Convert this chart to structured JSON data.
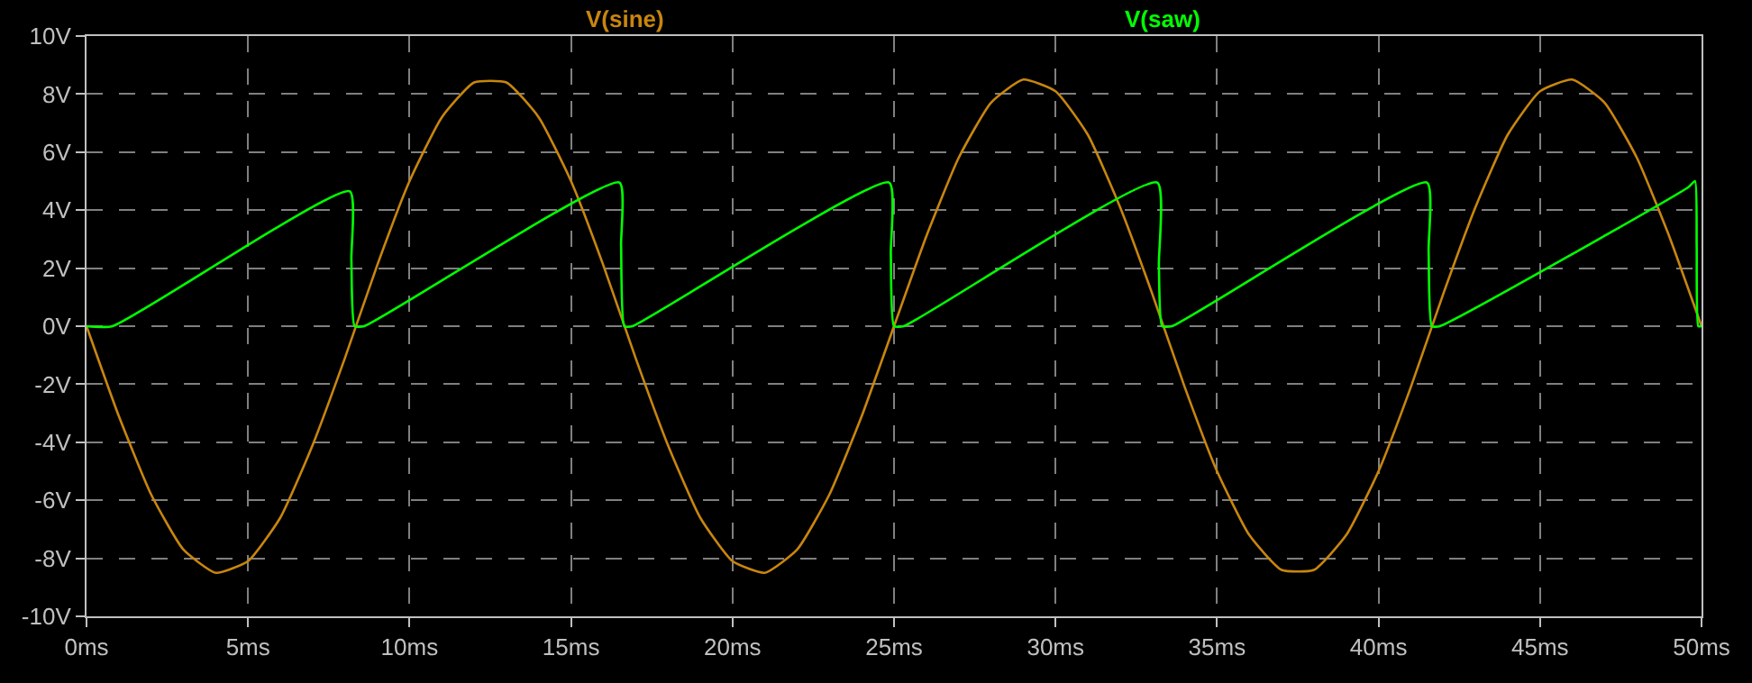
{
  "chart_data": {
    "type": "line",
    "grid": true,
    "legend": false,
    "marker": "none",
    "line_style": "solid",
    "xlim": [
      0,
      50
    ],
    "xticks": [
      {
        "value": 0,
        "label": "0ms"
      },
      {
        "value": 5,
        "label": "5ms"
      },
      {
        "value": 10,
        "label": "10ms"
      },
      {
        "value": 15,
        "label": "15ms"
      },
      {
        "value": 20,
        "label": "20ms"
      },
      {
        "value": 25,
        "label": "25ms"
      },
      {
        "value": 30,
        "label": "30ms"
      },
      {
        "value": 35,
        "label": "35ms"
      },
      {
        "value": 40,
        "label": "40ms"
      },
      {
        "value": 45,
        "label": "45ms"
      },
      {
        "value": 50,
        "label": "50ms"
      }
    ],
    "ylim": [
      -10,
      10
    ],
    "yticks": [
      {
        "value": -10,
        "label": "-10V"
      },
      {
        "value": -8,
        "label": "-8V"
      },
      {
        "value": -6,
        "label": "-6V"
      },
      {
        "value": -4,
        "label": "-4V"
      },
      {
        "value": -2,
        "label": "-2V"
      },
      {
        "value": 0,
        "label": "0V"
      },
      {
        "value": 2,
        "label": "2V"
      },
      {
        "value": 4,
        "label": "4V"
      },
      {
        "value": 6,
        "label": "6V"
      },
      {
        "value": 8,
        "label": "8V"
      },
      {
        "value": 10,
        "label": "10V"
      }
    ],
    "series": [
      {
        "name": "V(sine)",
        "color": "#c8860e",
        "x": [
          0,
          1,
          2,
          3,
          4,
          5,
          6,
          7,
          8,
          9,
          10,
          11,
          12,
          13,
          14,
          15,
          16,
          17,
          18,
          19,
          20,
          21,
          22,
          23,
          24,
          25,
          26,
          27,
          28,
          29,
          30,
          31,
          32,
          33,
          34,
          35,
          36,
          37,
          38,
          39,
          40,
          41,
          42,
          43,
          44,
          45,
          46,
          47,
          48,
          49,
          50
        ],
        "values": [
          0,
          -3.1,
          -5.8,
          -7.7,
          -8.5,
          -8.1,
          -6.6,
          -4.1,
          -1.1,
          2.1,
          5.0,
          7.2,
          8.4,
          8.4,
          7.2,
          5.0,
          2.1,
          -1.1,
          -4.1,
          -6.6,
          -8.1,
          -8.5,
          -7.7,
          -5.8,
          -3.1,
          0,
          3.1,
          5.8,
          7.7,
          8.5,
          8.1,
          6.6,
          4.1,
          1.1,
          -2.1,
          -5.0,
          -7.2,
          -8.4,
          -8.4,
          -7.2,
          -5.0,
          -2.1,
          1.1,
          4.1,
          6.6,
          8.1,
          8.5,
          7.7,
          5.8,
          3.1,
          0
        ]
      },
      {
        "name": "V(saw)",
        "color": "#00ff00",
        "x": [
          0,
          0.8,
          8.15,
          8.2,
          8.3,
          8.6,
          16.5,
          16.55,
          16.65,
          16.9,
          24.85,
          24.9,
          25.0,
          25.3,
          33.15,
          33.2,
          33.3,
          33.6,
          41.5,
          41.55,
          41.65,
          41.9,
          49.6,
          49.8,
          49.85,
          49.9,
          50
        ],
        "values": [
          0,
          0,
          4.65,
          2.3,
          0,
          0,
          4.95,
          2.8,
          0,
          0,
          4.95,
          2.5,
          0,
          0,
          4.95,
          2.1,
          0,
          0,
          4.95,
          2.6,
          0,
          0,
          4.8,
          5.0,
          2.8,
          0,
          0
        ]
      }
    ]
  }
}
